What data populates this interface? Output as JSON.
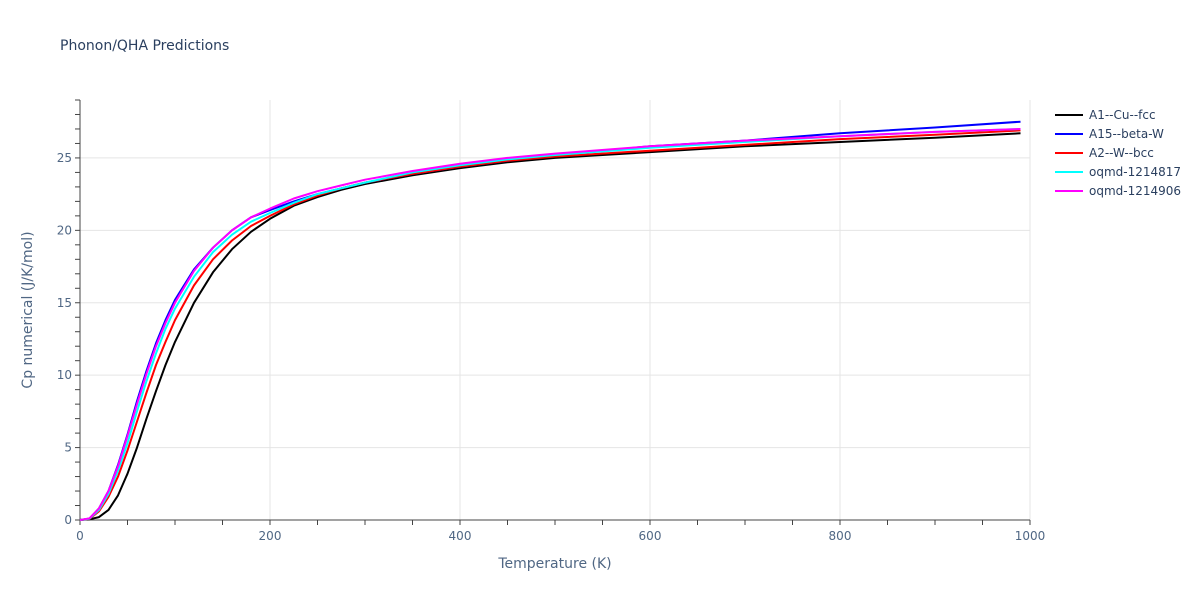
{
  "chart_data": {
    "type": "line",
    "title": "Phonon/QHA Predictions",
    "xlabel": "Temperature (K)",
    "ylabel": "Cp numerical (J/K/mol)",
    "xlim": [
      0,
      1000
    ],
    "ylim": [
      0,
      29
    ],
    "x_ticks": [
      0,
      200,
      400,
      600,
      800,
      1000
    ],
    "y_ticks": [
      0,
      5,
      10,
      15,
      20,
      25
    ],
    "grid": true,
    "legend_position": "top-right",
    "series": [
      {
        "name": "A1--Cu--fcc",
        "color": "#000000",
        "x": [
          0,
          10,
          20,
          30,
          40,
          50,
          60,
          70,
          80,
          90,
          100,
          120,
          140,
          160,
          180,
          200,
          225,
          250,
          275,
          300,
          350,
          400,
          450,
          500,
          600,
          700,
          800,
          900,
          990
        ],
        "y": [
          0,
          0.05,
          0.2,
          0.7,
          1.7,
          3.2,
          5.0,
          7.0,
          8.9,
          10.7,
          12.3,
          15.0,
          17.1,
          18.7,
          19.9,
          20.8,
          21.7,
          22.3,
          22.8,
          23.2,
          23.8,
          24.3,
          24.7,
          25.0,
          25.4,
          25.8,
          26.1,
          26.4,
          26.7
        ]
      },
      {
        "name": "A15--beta-W",
        "color": "#0000ff",
        "x": [
          0,
          10,
          20,
          30,
          40,
          50,
          60,
          70,
          80,
          90,
          100,
          120,
          140,
          160,
          180,
          200,
          225,
          250,
          275,
          300,
          350,
          400,
          450,
          500,
          600,
          700,
          800,
          900,
          990
        ],
        "y": [
          0,
          0.1,
          0.8,
          2.0,
          3.8,
          5.9,
          8.2,
          10.3,
          12.2,
          13.8,
          15.2,
          17.3,
          18.8,
          20.0,
          20.9,
          21.4,
          22.0,
          22.5,
          22.9,
          23.3,
          23.9,
          24.4,
          24.8,
          25.2,
          25.8,
          26.2,
          26.7,
          27.1,
          27.5
        ]
      },
      {
        "name": "A2--W--bcc",
        "color": "#ff0000",
        "x": [
          0,
          10,
          20,
          30,
          40,
          50,
          60,
          70,
          80,
          90,
          100,
          120,
          140,
          160,
          180,
          200,
          225,
          250,
          275,
          300,
          350,
          400,
          450,
          500,
          600,
          700,
          800,
          900,
          990
        ],
        "y": [
          0,
          0.08,
          0.6,
          1.6,
          3.0,
          4.8,
          6.8,
          8.8,
          10.7,
          12.3,
          13.8,
          16.2,
          18.0,
          19.3,
          20.3,
          21.0,
          21.8,
          22.4,
          22.9,
          23.3,
          23.9,
          24.4,
          24.8,
          25.1,
          25.5,
          25.9,
          26.3,
          26.6,
          26.9
        ]
      },
      {
        "name": "oqmd-1214817",
        "color": "#00ffff",
        "x": [
          0,
          10,
          20,
          30,
          40,
          50,
          60,
          70,
          80,
          90,
          100,
          120,
          140,
          160,
          180,
          200,
          225,
          250,
          275,
          300,
          350,
          400,
          450,
          500,
          600,
          700,
          800,
          900,
          990
        ],
        "y": [
          0,
          0.1,
          0.7,
          1.8,
          3.4,
          5.3,
          7.5,
          9.6,
          11.5,
          13.2,
          14.6,
          16.8,
          18.5,
          19.7,
          20.6,
          21.2,
          21.9,
          22.5,
          22.9,
          23.3,
          24.0,
          24.5,
          24.9,
          25.2,
          25.7,
          26.1,
          26.5,
          26.8,
          27.0
        ]
      },
      {
        "name": "oqmd-1214906",
        "color": "#ff00ff",
        "x": [
          0,
          10,
          20,
          30,
          40,
          50,
          60,
          70,
          80,
          90,
          100,
          120,
          140,
          160,
          180,
          200,
          225,
          250,
          275,
          300,
          350,
          400,
          450,
          500,
          600,
          700,
          800,
          900,
          990
        ],
        "y": [
          0,
          0.12,
          0.8,
          2.0,
          3.7,
          5.8,
          8.0,
          10.1,
          12.0,
          13.6,
          15.0,
          17.2,
          18.8,
          20.0,
          20.9,
          21.5,
          22.2,
          22.7,
          23.1,
          23.5,
          24.1,
          24.6,
          25.0,
          25.3,
          25.8,
          26.2,
          26.5,
          26.8,
          27.0
        ]
      }
    ]
  }
}
